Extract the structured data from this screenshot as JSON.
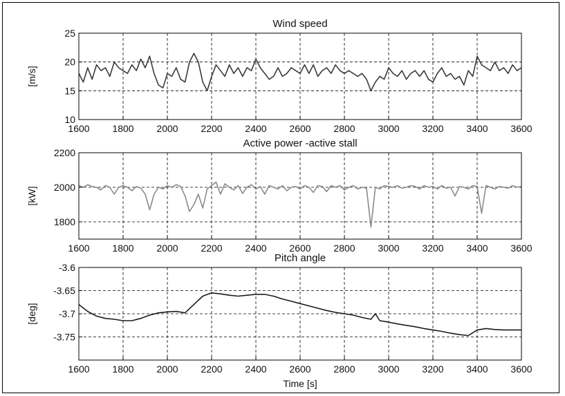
{
  "chart_data": [
    {
      "type": "line",
      "title": "Wind speed",
      "xlabel": "",
      "ylabel": "[m/s]",
      "xlim": [
        1600,
        3600
      ],
      "ylim": [
        10,
        25
      ],
      "xticks": [
        1600,
        1800,
        2000,
        2200,
        2400,
        2600,
        2800,
        3000,
        3200,
        3400,
        3600
      ],
      "yticks": [
        10,
        15,
        20,
        25
      ],
      "grid": true,
      "color": "#3a3a3a",
      "x": [
        1600,
        1620,
        1640,
        1660,
        1680,
        1700,
        1720,
        1740,
        1760,
        1780,
        1800,
        1820,
        1840,
        1860,
        1880,
        1900,
        1920,
        1940,
        1960,
        1980,
        2000,
        2020,
        2040,
        2060,
        2080,
        2100,
        2120,
        2140,
        2160,
        2180,
        2200,
        2220,
        2240,
        2260,
        2280,
        2300,
        2320,
        2340,
        2360,
        2380,
        2400,
        2420,
        2440,
        2460,
        2480,
        2500,
        2520,
        2540,
        2560,
        2580,
        2600,
        2620,
        2640,
        2660,
        2680,
        2700,
        2720,
        2740,
        2760,
        2780,
        2800,
        2820,
        2840,
        2860,
        2880,
        2900,
        2920,
        2940,
        2960,
        2980,
        3000,
        3020,
        3040,
        3060,
        3080,
        3100,
        3120,
        3140,
        3160,
        3180,
        3200,
        3220,
        3240,
        3260,
        3280,
        3300,
        3320,
        3340,
        3360,
        3380,
        3400,
        3420,
        3440,
        3460,
        3480,
        3500,
        3520,
        3540,
        3560,
        3580,
        3600
      ],
      "values": [
        18,
        16.5,
        19,
        17,
        19.5,
        18.5,
        19,
        17.5,
        20,
        19,
        18.5,
        18,
        19.5,
        18.5,
        20.5,
        19,
        21,
        18,
        16,
        15.5,
        18,
        17.5,
        19,
        17,
        16.5,
        20,
        21.5,
        20,
        16.5,
        15,
        17.5,
        19.5,
        18.5,
        17.5,
        19.5,
        18,
        19,
        17.5,
        19,
        18.5,
        20.5,
        19,
        18,
        17,
        17.5,
        19,
        17.5,
        18,
        19,
        18.5,
        18,
        19.5,
        18,
        19.5,
        17.5,
        18.5,
        19,
        18,
        19.5,
        18.5,
        18,
        18.5,
        18,
        17.5,
        18,
        17,
        15,
        16.5,
        17.5,
        17,
        19,
        18,
        17.5,
        18.5,
        17,
        18,
        18.5,
        17.5,
        18.5,
        17,
        16.5,
        18,
        19,
        17.5,
        18,
        17,
        17.5,
        16,
        18.5,
        17.5,
        21,
        19.5,
        19,
        18.5,
        20,
        18.5,
        19,
        18,
        19.5,
        18.5,
        19
      ]
    },
    {
      "type": "line",
      "title": "Active power -active stall",
      "xlabel": "",
      "ylabel": "[kW]",
      "xlim": [
        1600,
        3600
      ],
      "ylim": [
        1700,
        2200
      ],
      "xticks": [
        1600,
        1800,
        2000,
        2200,
        2400,
        2600,
        2800,
        3000,
        3200,
        3400,
        3600
      ],
      "yticks": [
        1800,
        2000,
        2200
      ],
      "grid": true,
      "color": "#8a8a8a",
      "x": [
        1600,
        1620,
        1640,
        1660,
        1680,
        1700,
        1720,
        1740,
        1760,
        1780,
        1800,
        1820,
        1840,
        1860,
        1880,
        1900,
        1920,
        1940,
        1960,
        1980,
        2000,
        2020,
        2040,
        2060,
        2080,
        2100,
        2120,
        2140,
        2160,
        2180,
        2200,
        2220,
        2240,
        2260,
        2280,
        2300,
        2320,
        2340,
        2360,
        2380,
        2400,
        2420,
        2440,
        2460,
        2480,
        2500,
        2520,
        2540,
        2560,
        2580,
        2600,
        2620,
        2640,
        2660,
        2680,
        2700,
        2720,
        2740,
        2760,
        2780,
        2800,
        2820,
        2840,
        2860,
        2880,
        2900,
        2920,
        2940,
        2960,
        2980,
        3000,
        3020,
        3040,
        3060,
        3080,
        3100,
        3120,
        3140,
        3160,
        3180,
        3200,
        3220,
        3240,
        3260,
        3280,
        3300,
        3320,
        3340,
        3360,
        3380,
        3400,
        3420,
        3440,
        3460,
        3480,
        3500,
        3520,
        3540,
        3560,
        3580,
        3600
      ],
      "values": [
        2010,
        2000,
        2015,
        2005,
        2000,
        1985,
        2010,
        2000,
        1960,
        2000,
        2010,
        2000,
        1980,
        2005,
        1995,
        1960,
        1870,
        1960,
        2000,
        1990,
        2010,
        2000,
        2015,
        2005,
        1950,
        1860,
        1900,
        1960,
        1880,
        1990,
        2010,
        2030,
        1960,
        2020,
        2000,
        1985,
        2010,
        1965,
        2000,
        2015,
        1990,
        2005,
        1960,
        2010,
        2000,
        1990,
        2010,
        1980,
        2000,
        2005,
        1990,
        2010,
        2000,
        1970,
        2010,
        2005,
        1975,
        2010,
        2000,
        2010,
        1985,
        2000,
        2010,
        1990,
        2000,
        1995,
        1770,
        2000,
        1990,
        2010,
        2005,
        2000,
        2010,
        1995,
        2000,
        2010,
        2005,
        1990,
        2010,
        2000,
        2005,
        1990,
        2010,
        1995,
        2000,
        1950,
        2005,
        2000,
        1990,
        2010,
        2005,
        1850,
        2010,
        2000,
        1990,
        2005,
        2000,
        1995,
        2010,
        2000,
        2005
      ]
    },
    {
      "type": "line",
      "title": "Pitch angle",
      "xlabel": "Time [s]",
      "ylabel": "[deg]",
      "xlim": [
        1600,
        3600
      ],
      "ylim": [
        -3.8,
        -3.6
      ],
      "xticks": [
        1600,
        1800,
        2000,
        2200,
        2400,
        2600,
        2800,
        3000,
        3200,
        3400,
        3600
      ],
      "yticks": [
        -3.75,
        -3.7,
        -3.65,
        -3.6
      ],
      "grid": true,
      "color": "#1a1a1a",
      "x": [
        1600,
        1640,
        1680,
        1720,
        1760,
        1800,
        1840,
        1880,
        1920,
        1960,
        2000,
        2040,
        2080,
        2120,
        2160,
        2200,
        2240,
        2280,
        2320,
        2360,
        2400,
        2440,
        2480,
        2520,
        2560,
        2600,
        2640,
        2680,
        2720,
        2760,
        2800,
        2840,
        2880,
        2920,
        2940,
        2960,
        3000,
        3040,
        3080,
        3120,
        3160,
        3200,
        3240,
        3280,
        3320,
        3360,
        3400,
        3440,
        3480,
        3520,
        3560,
        3600
      ],
      "values": [
        -3.68,
        -3.695,
        -3.705,
        -3.71,
        -3.712,
        -3.715,
        -3.715,
        -3.71,
        -3.703,
        -3.698,
        -3.696,
        -3.695,
        -3.698,
        -3.68,
        -3.662,
        -3.655,
        -3.657,
        -3.66,
        -3.662,
        -3.66,
        -3.658,
        -3.658,
        -3.662,
        -3.668,
        -3.673,
        -3.678,
        -3.683,
        -3.688,
        -3.693,
        -3.697,
        -3.7,
        -3.703,
        -3.708,
        -3.712,
        -3.7,
        -3.715,
        -3.718,
        -3.722,
        -3.725,
        -3.728,
        -3.732,
        -3.735,
        -3.738,
        -3.742,
        -3.745,
        -3.747,
        -3.735,
        -3.732,
        -3.734,
        -3.735,
        -3.735,
        -3.735
      ]
    }
  ]
}
